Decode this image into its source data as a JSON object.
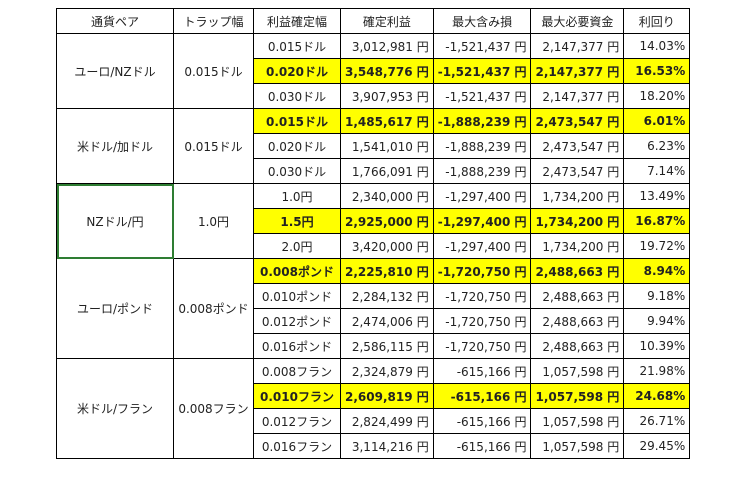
{
  "headers": [
    "通貨ペア",
    "トラップ幅",
    "利益確定幅",
    "確定利益",
    "最大含み損",
    "最大必要資金",
    "利回り"
  ],
  "groups": [
    {
      "pair": "ユーロ/NZドル",
      "trap": "0.015ドル",
      "rows": [
        {
          "tw": "0.015ドル",
          "profit": "3,012,981 円",
          "loss": "-1,521,437 円",
          "capital": "2,147,377 円",
          "yield": "14.03%",
          "highlight": false
        },
        {
          "tw": "0.020ドル",
          "profit": "3,548,776 円",
          "loss": "-1,521,437 円",
          "capital": "2,147,377 円",
          "yield": "16.53%",
          "highlight": true
        },
        {
          "tw": "0.030ドル",
          "profit": "3,907,953 円",
          "loss": "-1,521,437 円",
          "capital": "2,147,377 円",
          "yield": "18.20%",
          "highlight": false
        }
      ]
    },
    {
      "pair": "米ドル/加ドル",
      "trap": "0.015ドル",
      "rows": [
        {
          "tw": "0.015ドル",
          "profit": "1,485,617 円",
          "loss": "-1,888,239 円",
          "capital": "2,473,547 円",
          "yield": "6.01%",
          "highlight": true
        },
        {
          "tw": "0.020ドル",
          "profit": "1,541,010 円",
          "loss": "-1,888,239 円",
          "capital": "2,473,547 円",
          "yield": "6.23%",
          "highlight": false
        },
        {
          "tw": "0.030ドル",
          "profit": "1,766,091 円",
          "loss": "-1,888,239 円",
          "capital": "2,473,547 円",
          "yield": "7.14%",
          "highlight": false
        }
      ]
    },
    {
      "pair": "NZドル/円",
      "trap": "1.0円",
      "selected": true,
      "rows": [
        {
          "tw": "1.0円",
          "profit": "2,340,000 円",
          "loss": "-1,297,400 円",
          "capital": "1,734,200 円",
          "yield": "13.49%",
          "highlight": false
        },
        {
          "tw": "1.5円",
          "profit": "2,925,000 円",
          "loss": "-1,297,400 円",
          "capital": "1,734,200 円",
          "yield": "16.87%",
          "highlight": true
        },
        {
          "tw": "2.0円",
          "profit": "3,420,000 円",
          "loss": "-1,297,400 円",
          "capital": "1,734,200 円",
          "yield": "19.72%",
          "highlight": false
        }
      ]
    },
    {
      "pair": "ユーロ/ポンド",
      "trap": "0.008ポンド",
      "rows": [
        {
          "tw": "0.008ポンド",
          "profit": "2,225,810 円",
          "loss": "-1,720,750 円",
          "capital": "2,488,663 円",
          "yield": "8.94%",
          "highlight": true
        },
        {
          "tw": "0.010ポンド",
          "profit": "2,284,132 円",
          "loss": "-1,720,750 円",
          "capital": "2,488,663 円",
          "yield": "9.18%",
          "highlight": false
        },
        {
          "tw": "0.012ポンド",
          "profit": "2,474,006 円",
          "loss": "-1,720,750 円",
          "capital": "2,488,663 円",
          "yield": "9.94%",
          "highlight": false
        },
        {
          "tw": "0.016ポンド",
          "profit": "2,586,115 円",
          "loss": "-1,720,750 円",
          "capital": "2,488,663 円",
          "yield": "10.39%",
          "highlight": false
        }
      ]
    },
    {
      "pair": "米ドル/フラン",
      "trap": "0.008フラン",
      "rows": [
        {
          "tw": "0.008フラン",
          "profit": "2,324,879 円",
          "loss": "-615,166 円",
          "capital": "1,057,598 円",
          "yield": "21.98%",
          "highlight": false
        },
        {
          "tw": "0.010フラン",
          "profit": "2,609,819 円",
          "loss": "-615,166 円",
          "capital": "1,057,598 円",
          "yield": "24.68%",
          "highlight": true
        },
        {
          "tw": "0.012フラン",
          "profit": "2,824,499 円",
          "loss": "-615,166 円",
          "capital": "1,057,598 円",
          "yield": "26.71%",
          "highlight": false
        },
        {
          "tw": "0.016フラン",
          "profit": "3,114,216 円",
          "loss": "-615,166 円",
          "capital": "1,057,598 円",
          "yield": "29.45%",
          "highlight": false
        }
      ]
    }
  ],
  "colors": {
    "highlight": "#ffff00",
    "selection": "#2e7d32"
  }
}
